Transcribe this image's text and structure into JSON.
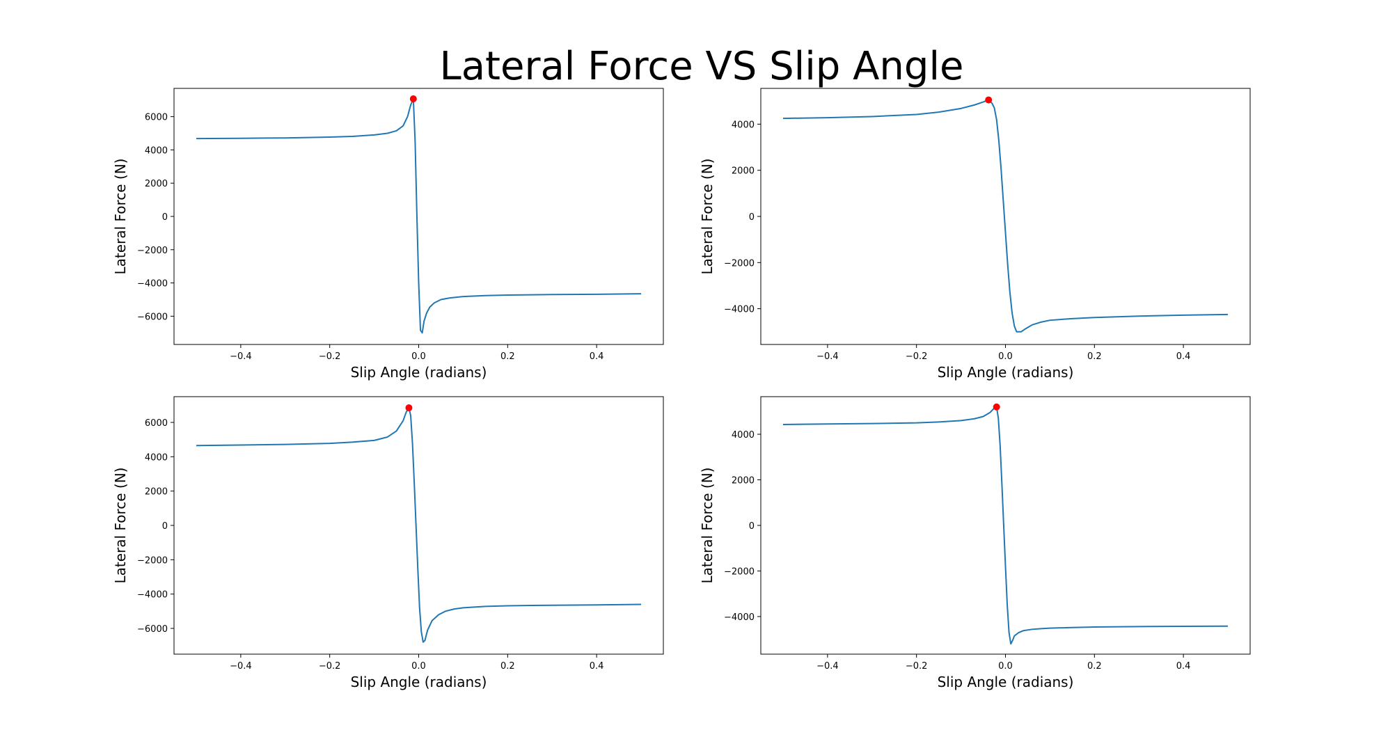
{
  "figure": {
    "title": "Lateral Force VS Slip Angle",
    "line_color": "#1f77b4",
    "peak_color": "#ff0000"
  },
  "chart_data": [
    {
      "type": "line",
      "xlabel": "Slip Angle (radians)",
      "ylabel": "Lateral Force (N)",
      "xlim": [
        -0.55,
        0.55
      ],
      "ylim": [
        -7700,
        7700
      ],
      "xticks": [
        -0.4,
        -0.2,
        0.0,
        0.2,
        0.4
      ],
      "xtick_labels": [
        "−0.4",
        "−0.2",
        "0.0",
        "0.2",
        "0.4"
      ],
      "yticks": [
        -6000,
        -4000,
        -2000,
        0,
        2000,
        4000,
        6000
      ],
      "ytick_labels": [
        "−6000",
        "−4000",
        "−2000",
        "0",
        "2000",
        "4000",
        "6000"
      ],
      "series": [
        {
          "x": [
            -0.5,
            -0.4,
            -0.3,
            -0.2,
            -0.15,
            -0.1,
            -0.07,
            -0.05,
            -0.035,
            -0.025,
            -0.018,
            -0.012,
            -0.008,
            -0.004,
            0.0,
            0.004,
            0.008,
            0.012,
            0.018,
            0.025,
            0.035,
            0.05,
            0.07,
            0.1,
            0.15,
            0.2,
            0.3,
            0.4,
            0.5
          ],
          "y": [
            4680,
            4700,
            4720,
            4770,
            4810,
            4900,
            5000,
            5150,
            5450,
            6000,
            6700,
            7070,
            4500,
            0,
            -4000,
            -6850,
            -7000,
            -6300,
            -5800,
            -5450,
            -5200,
            -5000,
            -4900,
            -4820,
            -4760,
            -4730,
            -4700,
            -4680,
            -4650
          ]
        }
      ],
      "peak": {
        "x": -0.012,
        "y": 7070
      }
    },
    {
      "type": "line",
      "xlabel": "Slip Angle (radians)",
      "ylabel": "Lateral Force (N)",
      "xlim": [
        -0.55,
        0.55
      ],
      "ylim": [
        -5550,
        5550
      ],
      "xticks": [
        -0.4,
        -0.2,
        0.0,
        0.2,
        0.4
      ],
      "xtick_labels": [
        "−0.4",
        "−0.2",
        "0.0",
        "0.2",
        "0.4"
      ],
      "yticks": [
        -4000,
        -2000,
        0,
        2000,
        4000
      ],
      "ytick_labels": [
        "−4000",
        "−2000",
        "0",
        "2000",
        "4000"
      ],
      "series": [
        {
          "x": [
            -0.5,
            -0.4,
            -0.3,
            -0.2,
            -0.15,
            -0.1,
            -0.07,
            -0.05,
            -0.038,
            -0.03,
            -0.025,
            -0.02,
            -0.015,
            -0.01,
            -0.005,
            0.0,
            0.005,
            0.01,
            0.015,
            0.02,
            0.025,
            0.035,
            0.045,
            0.06,
            0.08,
            0.1,
            0.15,
            0.2,
            0.3,
            0.4,
            0.5
          ],
          "y": [
            4250,
            4280,
            4330,
            4420,
            4520,
            4680,
            4830,
            4960,
            5050,
            4900,
            4700,
            4200,
            3300,
            2100,
            700,
            -700,
            -2100,
            -3300,
            -4200,
            -4750,
            -5000,
            -5000,
            -4870,
            -4700,
            -4580,
            -4500,
            -4430,
            -4380,
            -4320,
            -4280,
            -4250
          ]
        }
      ],
      "peak": {
        "x": -0.038,
        "y": 5050
      }
    },
    {
      "type": "line",
      "xlabel": "Slip Angle (radians)",
      "ylabel": "Lateral Force (N)",
      "xlim": [
        -0.55,
        0.55
      ],
      "ylim": [
        -7500,
        7500
      ],
      "xticks": [
        -0.4,
        -0.2,
        0.0,
        0.2,
        0.4
      ],
      "xtick_labels": [
        "−0.4",
        "−0.2",
        "0.0",
        "0.2",
        "0.4"
      ],
      "yticks": [
        -6000,
        -4000,
        -2000,
        0,
        2000,
        4000,
        6000
      ],
      "ytick_labels": [
        "−6000",
        "−4000",
        "−2000",
        "0",
        "2000",
        "4000",
        "6000"
      ],
      "series": [
        {
          "x": [
            -0.5,
            -0.4,
            -0.3,
            -0.2,
            -0.15,
            -0.1,
            -0.07,
            -0.05,
            -0.035,
            -0.028,
            -0.022,
            -0.018,
            -0.014,
            -0.01,
            -0.006,
            -0.002,
            0.002,
            0.006,
            0.01,
            0.014,
            0.02,
            0.03,
            0.045,
            0.06,
            0.08,
            0.1,
            0.15,
            0.2,
            0.3,
            0.4,
            0.5
          ],
          "y": [
            4650,
            4680,
            4720,
            4780,
            4850,
            4950,
            5150,
            5500,
            6100,
            6600,
            6850,
            6400,
            4800,
            2500,
            0,
            -2500,
            -4800,
            -6200,
            -6800,
            -6700,
            -6100,
            -5550,
            -5200,
            -5000,
            -4870,
            -4800,
            -4720,
            -4680,
            -4650,
            -4630,
            -4600
          ]
        }
      ],
      "peak": {
        "x": -0.022,
        "y": 6850
      }
    },
    {
      "type": "line",
      "xlabel": "Slip Angle (radians)",
      "ylabel": "Lateral Force (N)",
      "xlim": [
        -0.55,
        0.55
      ],
      "ylim": [
        -5650,
        5650
      ],
      "xticks": [
        -0.4,
        -0.2,
        0.0,
        0.2,
        0.4
      ],
      "xtick_labels": [
        "−0.4",
        "−0.2",
        "0.0",
        "0.2",
        "0.4"
      ],
      "yticks": [
        -4000,
        -2000,
        0,
        2000,
        4000
      ],
      "ytick_labels": [
        "−4000",
        "−2000",
        "0",
        "2000",
        "4000"
      ],
      "series": [
        {
          "x": [
            -0.5,
            -0.4,
            -0.3,
            -0.2,
            -0.15,
            -0.1,
            -0.07,
            -0.05,
            -0.035,
            -0.025,
            -0.02,
            -0.016,
            -0.012,
            -0.008,
            -0.004,
            0.0,
            0.004,
            0.008,
            0.012,
            0.016,
            0.02,
            0.03,
            0.04,
            0.06,
            0.08,
            0.1,
            0.15,
            0.2,
            0.3,
            0.4,
            0.5
          ],
          "y": [
            4430,
            4450,
            4470,
            4500,
            4540,
            4600,
            4680,
            4780,
            4950,
            5150,
            5200,
            4700,
            3500,
            1800,
            0,
            -1800,
            -3500,
            -4700,
            -5200,
            -5050,
            -4850,
            -4700,
            -4620,
            -4560,
            -4530,
            -4510,
            -4480,
            -4460,
            -4440,
            -4430,
            -4420
          ]
        }
      ],
      "peak": {
        "x": -0.02,
        "y": 5200
      }
    }
  ]
}
